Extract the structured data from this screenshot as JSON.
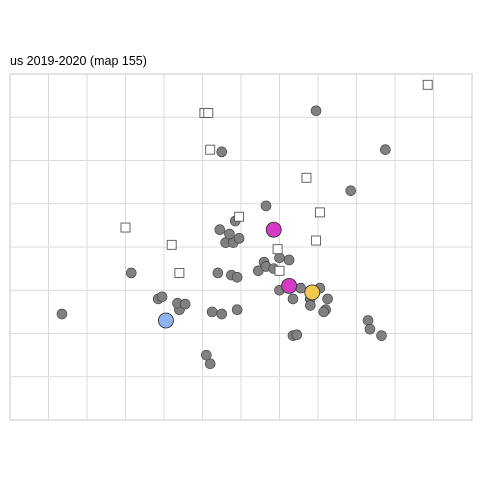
{
  "chart_data": {
    "type": "scatter",
    "title": "us 2019-2020  (map 155)",
    "xlabel": "",
    "ylabel": "",
    "xlim": [
      0,
      12
    ],
    "ylim": [
      0,
      8
    ],
    "grid": true,
    "legend": "none",
    "series": [
      {
        "marker": "circle",
        "color": "#808080",
        "points": [
          [
            1.35,
            2.45
          ],
          [
            3.15,
            3.4
          ],
          [
            3.85,
            2.8
          ],
          [
            3.95,
            2.85
          ],
          [
            4.45,
            2.65
          ],
          [
            4.4,
            2.55
          ],
          [
            4.35,
            2.7
          ],
          [
            4.55,
            2.68
          ],
          [
            5.2,
            1.3
          ],
          [
            5.1,
            1.5
          ],
          [
            5.25,
            2.5
          ],
          [
            5.5,
            2.45
          ],
          [
            5.4,
            3.4
          ],
          [
            5.75,
            3.35
          ],
          [
            5.9,
            3.3
          ],
          [
            5.9,
            2.55
          ],
          [
            5.45,
            4.4
          ],
          [
            5.6,
            4.1
          ],
          [
            5.8,
            4.1
          ],
          [
            5.95,
            4.2
          ],
          [
            5.85,
            4.6
          ],
          [
            5.7,
            4.3
          ],
          [
            5.5,
            6.2
          ],
          [
            6.45,
            3.45
          ],
          [
            6.6,
            3.65
          ],
          [
            6.65,
            3.55
          ],
          [
            7.0,
            3.75
          ],
          [
            6.85,
            3.5
          ],
          [
            7.25,
            3.7
          ],
          [
            7.0,
            3.0
          ],
          [
            7.35,
            2.8
          ],
          [
            7.55,
            3.05
          ],
          [
            7.8,
            2.8
          ],
          [
            7.8,
            2.65
          ],
          [
            8.05,
            3.05
          ],
          [
            8.25,
            2.8
          ],
          [
            8.2,
            2.55
          ],
          [
            8.15,
            2.5
          ],
          [
            7.35,
            1.95
          ],
          [
            7.45,
            1.97
          ],
          [
            7.95,
            7.15
          ],
          [
            6.65,
            4.95
          ],
          [
            8.85,
            5.3
          ],
          [
            9.75,
            6.25
          ],
          [
            9.3,
            2.3
          ],
          [
            9.35,
            2.1
          ],
          [
            9.65,
            1.95
          ]
        ]
      },
      {
        "marker": "square",
        "color": "#ffffff",
        "points": [
          [
            3.0,
            4.45
          ],
          [
            4.2,
            4.05
          ],
          [
            4.4,
            3.4
          ],
          [
            5.05,
            7.1
          ],
          [
            5.15,
            7.1
          ],
          [
            5.2,
            6.25
          ],
          [
            5.95,
            4.7
          ],
          [
            6.95,
            3.95
          ],
          [
            7.0,
            3.45
          ],
          [
            7.7,
            5.6
          ],
          [
            8.05,
            4.8
          ],
          [
            7.95,
            4.15
          ],
          [
            10.85,
            7.75
          ]
        ]
      },
      {
        "marker": "circle",
        "color": "#8fb3f0",
        "points": [
          [
            4.05,
            2.3
          ]
        ]
      },
      {
        "marker": "circle",
        "color": "#d63bc5",
        "points": [
          [
            6.85,
            4.4
          ],
          [
            7.25,
            3.1
          ]
        ]
      },
      {
        "marker": "circle",
        "color": "#f0c94d",
        "points": [
          [
            7.85,
            2.95
          ]
        ]
      }
    ]
  }
}
